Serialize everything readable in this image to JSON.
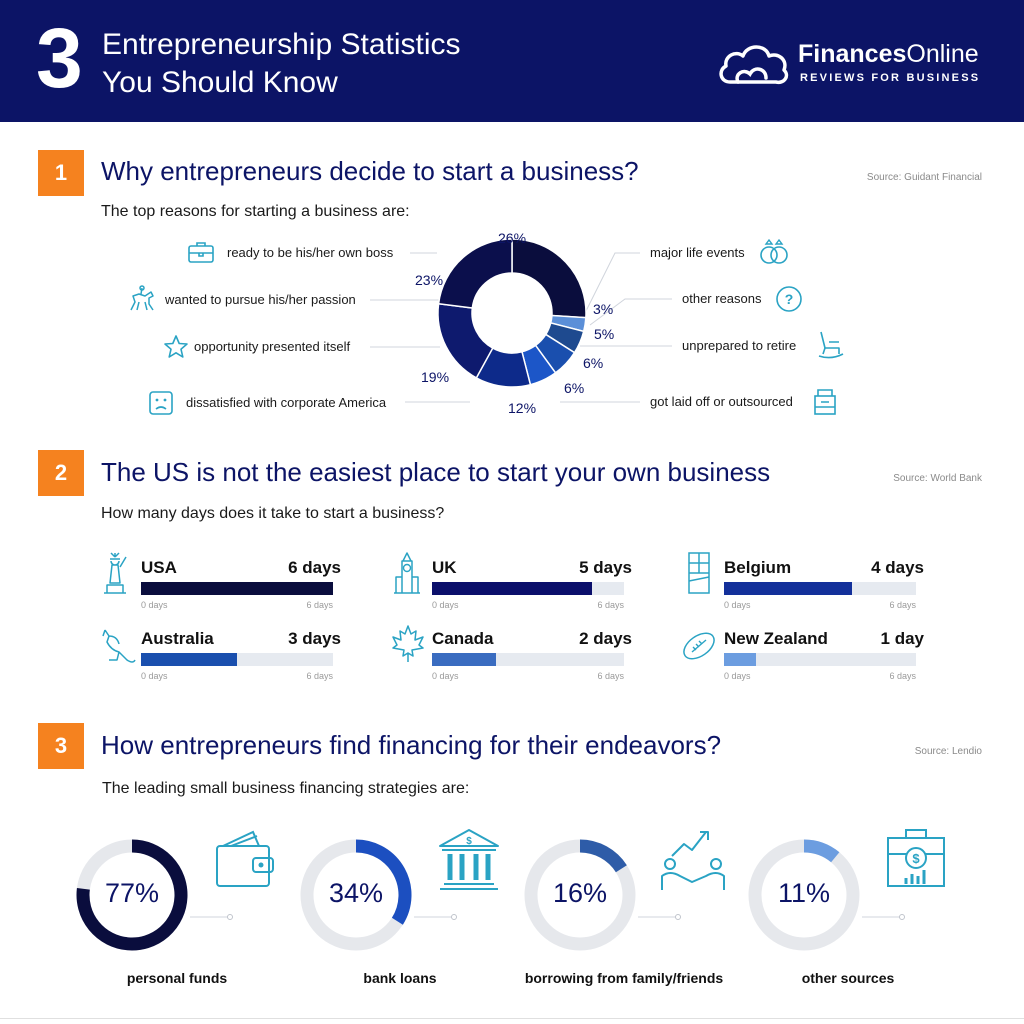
{
  "header": {
    "number": "3",
    "title_line1": "Entrepreneurship Statistics",
    "title_line2": "You Should Know",
    "brand_bold": "Finances",
    "brand_rest": "Online",
    "tagline": "REVIEWS FOR BUSINESS"
  },
  "section1": {
    "badge": "1",
    "title": "Why entrepreneurs decide to start a business?",
    "source": "Source: Guidant Financial",
    "subtitle": "The top reasons for starting a business are:"
  },
  "section2": {
    "badge": "2",
    "title": "The US is not the easiest place to start your own business",
    "source": "Source: World Bank",
    "subtitle": "How many days does it take to start a business?"
  },
  "section3": {
    "badge": "3",
    "title": "How entrepreneurs find financing for their endeavors?",
    "source": "Source: Lendio",
    "subtitle": "The leading small business financing strategies are:"
  },
  "colors": {
    "navy": "#0c1466",
    "orange": "#f5821f",
    "teal_icon": "#2aa3c4",
    "track": "#e6eaf0"
  },
  "chart_data": [
    {
      "type": "pie",
      "title": "Why entrepreneurs decide to start a business?",
      "categories": [
        "ready to be his/her own boss",
        "major life events",
        "other reasons",
        "unprepared to retire",
        "got laid off or outsourced",
        "dissatisfied with corporate America",
        "opportunity presented itself",
        "wanted to pursue his/her passion"
      ],
      "values": [
        26,
        3,
        5,
        6,
        6,
        12,
        19,
        23
      ],
      "value_labels": [
        "26%",
        "3%",
        "5%",
        "6%",
        "6%",
        "12%",
        "19%",
        "23%"
      ],
      "colors": [
        "#0a0d3d",
        "#5b8fd8",
        "#1e4a8f",
        "#1a4fae",
        "#1c56c8",
        "#0d2a8a",
        "#0e1a6e",
        "#0b0f4c"
      ],
      "icons": [
        "briefcase-icon",
        "rings-icon",
        "question-icon",
        "rocking-chair-icon",
        "box-icon",
        "sad-face-icon",
        "star-icon",
        "horse-rider-icon"
      ]
    },
    {
      "type": "bar",
      "title": "How many days does it take to start a business?",
      "categories": [
        "USA",
        "UK",
        "Belgium",
        "Australia",
        "Canada",
        "New Zealand"
      ],
      "values": [
        6,
        5,
        4,
        3,
        2,
        1
      ],
      "value_labels": [
        "6 days",
        "5 days",
        "4 days",
        "3 days",
        "2 days",
        "1 day"
      ],
      "axis_min_label": "0 days",
      "axis_max_label": "6 days",
      "xlim": [
        0,
        6
      ],
      "colors": [
        "#0a0d3d",
        "#0b0f6b",
        "#13309a",
        "#1a4fae",
        "#3a6cc0",
        "#6c9de0"
      ],
      "icons": [
        "statue-of-liberty-icon",
        "big-ben-icon",
        "chocolate-icon",
        "kangaroo-icon",
        "maple-leaf-icon",
        "rugby-ball-icon"
      ]
    },
    {
      "type": "pie",
      "title": "The leading small business financing strategies are:",
      "categories": [
        "personal funds",
        "bank loans",
        "borrowing from family/friends",
        "other sources"
      ],
      "values": [
        77,
        34,
        16,
        11
      ],
      "value_labels": [
        "77%",
        "34%",
        "16%",
        "11%"
      ],
      "colors": [
        "#0a0d3d",
        "#1c4fc0",
        "#2e5ca8",
        "#6c9de0"
      ],
      "icons": [
        "wallet-icon",
        "bank-icon",
        "handshake-icon",
        "money-box-icon"
      ]
    }
  ]
}
